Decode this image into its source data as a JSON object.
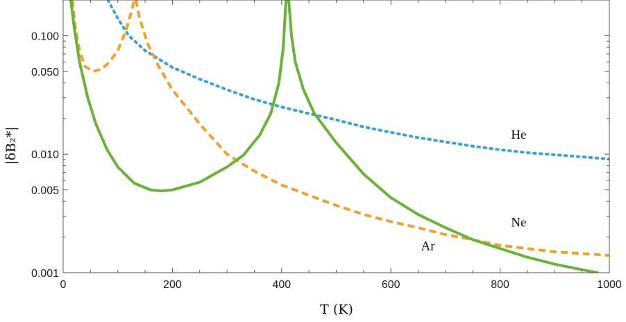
{
  "chart_data": {
    "type": "line",
    "xlabel": "T (K)",
    "ylabel": "|δB₂*|",
    "xlim": [
      0,
      1000
    ],
    "ylim": [
      0.001,
      0.2
    ],
    "yscale": "log",
    "grid": false,
    "x_ticks": [
      0,
      200,
      400,
      600,
      800,
      1000
    ],
    "x_tick_labels": [
      "0",
      "200",
      "400",
      "600",
      "800",
      "1000"
    ],
    "y_ticks": [
      0.001,
      0.005,
      0.01,
      0.05,
      0.1
    ],
    "y_tick_labels": [
      "0.001",
      "0.005",
      "0.010",
      "0.050",
      "0.100"
    ],
    "series": [
      {
        "name": "He",
        "color": "#3aa0d5",
        "style": "dotted",
        "points": [
          [
            82,
            0.2
          ],
          [
            100,
            0.14
          ],
          [
            120,
            0.1
          ],
          [
            150,
            0.075
          ],
          [
            200,
            0.054
          ],
          [
            250,
            0.043
          ],
          [
            300,
            0.035
          ],
          [
            350,
            0.029
          ],
          [
            400,
            0.025
          ],
          [
            450,
            0.022
          ],
          [
            500,
            0.0195
          ],
          [
            550,
            0.017
          ],
          [
            600,
            0.0153
          ],
          [
            650,
            0.0138
          ],
          [
            700,
            0.0127
          ],
          [
            750,
            0.0117
          ],
          [
            800,
            0.0109
          ],
          [
            850,
            0.0103
          ],
          [
            900,
            0.0099
          ],
          [
            950,
            0.0095
          ],
          [
            1000,
            0.0091
          ]
        ]
      },
      {
        "name": "Ne",
        "color": "#f0a030",
        "style": "dashed",
        "segments": [
          [
            [
              17,
              0.2
            ],
            [
              22,
              0.12
            ],
            [
              30,
              0.075
            ],
            [
              40,
              0.055
            ],
            [
              55,
              0.05
            ],
            [
              70,
              0.052
            ],
            [
              85,
              0.06
            ],
            [
              100,
              0.075
            ],
            [
              115,
              0.11
            ],
            [
              125,
              0.16
            ],
            [
              130,
              0.2
            ]
          ],
          [
            [
              133,
              0.2
            ],
            [
              140,
              0.14
            ],
            [
              155,
              0.085
            ],
            [
              175,
              0.055
            ],
            [
              200,
              0.035
            ],
            [
              250,
              0.018
            ],
            [
              300,
              0.01
            ],
            [
              350,
              0.0072
            ],
            [
              400,
              0.0055
            ],
            [
              450,
              0.0045
            ],
            [
              500,
              0.0037
            ],
            [
              550,
              0.0031
            ],
            [
              600,
              0.0027
            ],
            [
              650,
              0.0024
            ],
            [
              700,
              0.0021
            ],
            [
              750,
              0.0019
            ],
            [
              800,
              0.0017
            ],
            [
              850,
              0.0016
            ],
            [
              900,
              0.0015
            ],
            [
              950,
              0.00145
            ],
            [
              1000,
              0.0014
            ]
          ]
        ]
      },
      {
        "name": "Ar",
        "color": "#6ab23c",
        "style": "solid",
        "segments": [
          [
            [
              14,
              0.2
            ],
            [
              20,
              0.12
            ],
            [
              30,
              0.06
            ],
            [
              45,
              0.03
            ],
            [
              60,
              0.018
            ],
            [
              80,
              0.011
            ],
            [
              100,
              0.0078
            ],
            [
              130,
              0.0057
            ],
            [
              160,
              0.005
            ],
            [
              180,
              0.0049
            ],
            [
              200,
              0.005
            ],
            [
              250,
              0.0058
            ],
            [
              300,
              0.0078
            ],
            [
              330,
              0.0098
            ],
            [
              360,
              0.0145
            ],
            [
              380,
              0.022
            ],
            [
              395,
              0.04
            ],
            [
              403,
              0.08
            ],
            [
              408,
              0.2
            ]
          ],
          [
            [
              413,
              0.2
            ],
            [
              418,
              0.1
            ],
            [
              425,
              0.06
            ],
            [
              440,
              0.035
            ],
            [
              460,
              0.022
            ],
            [
              500,
              0.0125
            ],
            [
              550,
              0.0068
            ],
            [
              600,
              0.0043
            ],
            [
              650,
              0.0031
            ],
            [
              700,
              0.0024
            ],
            [
              750,
              0.0019
            ],
            [
              800,
              0.0016
            ],
            [
              850,
              0.00135
            ],
            [
              900,
              0.00118
            ],
            [
              950,
              0.00106
            ],
            [
              980,
              0.001
            ]
          ]
        ]
      }
    ],
    "annotations": [
      {
        "text": "He",
        "x": 820,
        "y": 0.0135
      },
      {
        "text": "Ne",
        "x": 820,
        "y": 0.00245
      },
      {
        "text": "Ar",
        "x": 655,
        "y": 0.00155
      }
    ]
  }
}
